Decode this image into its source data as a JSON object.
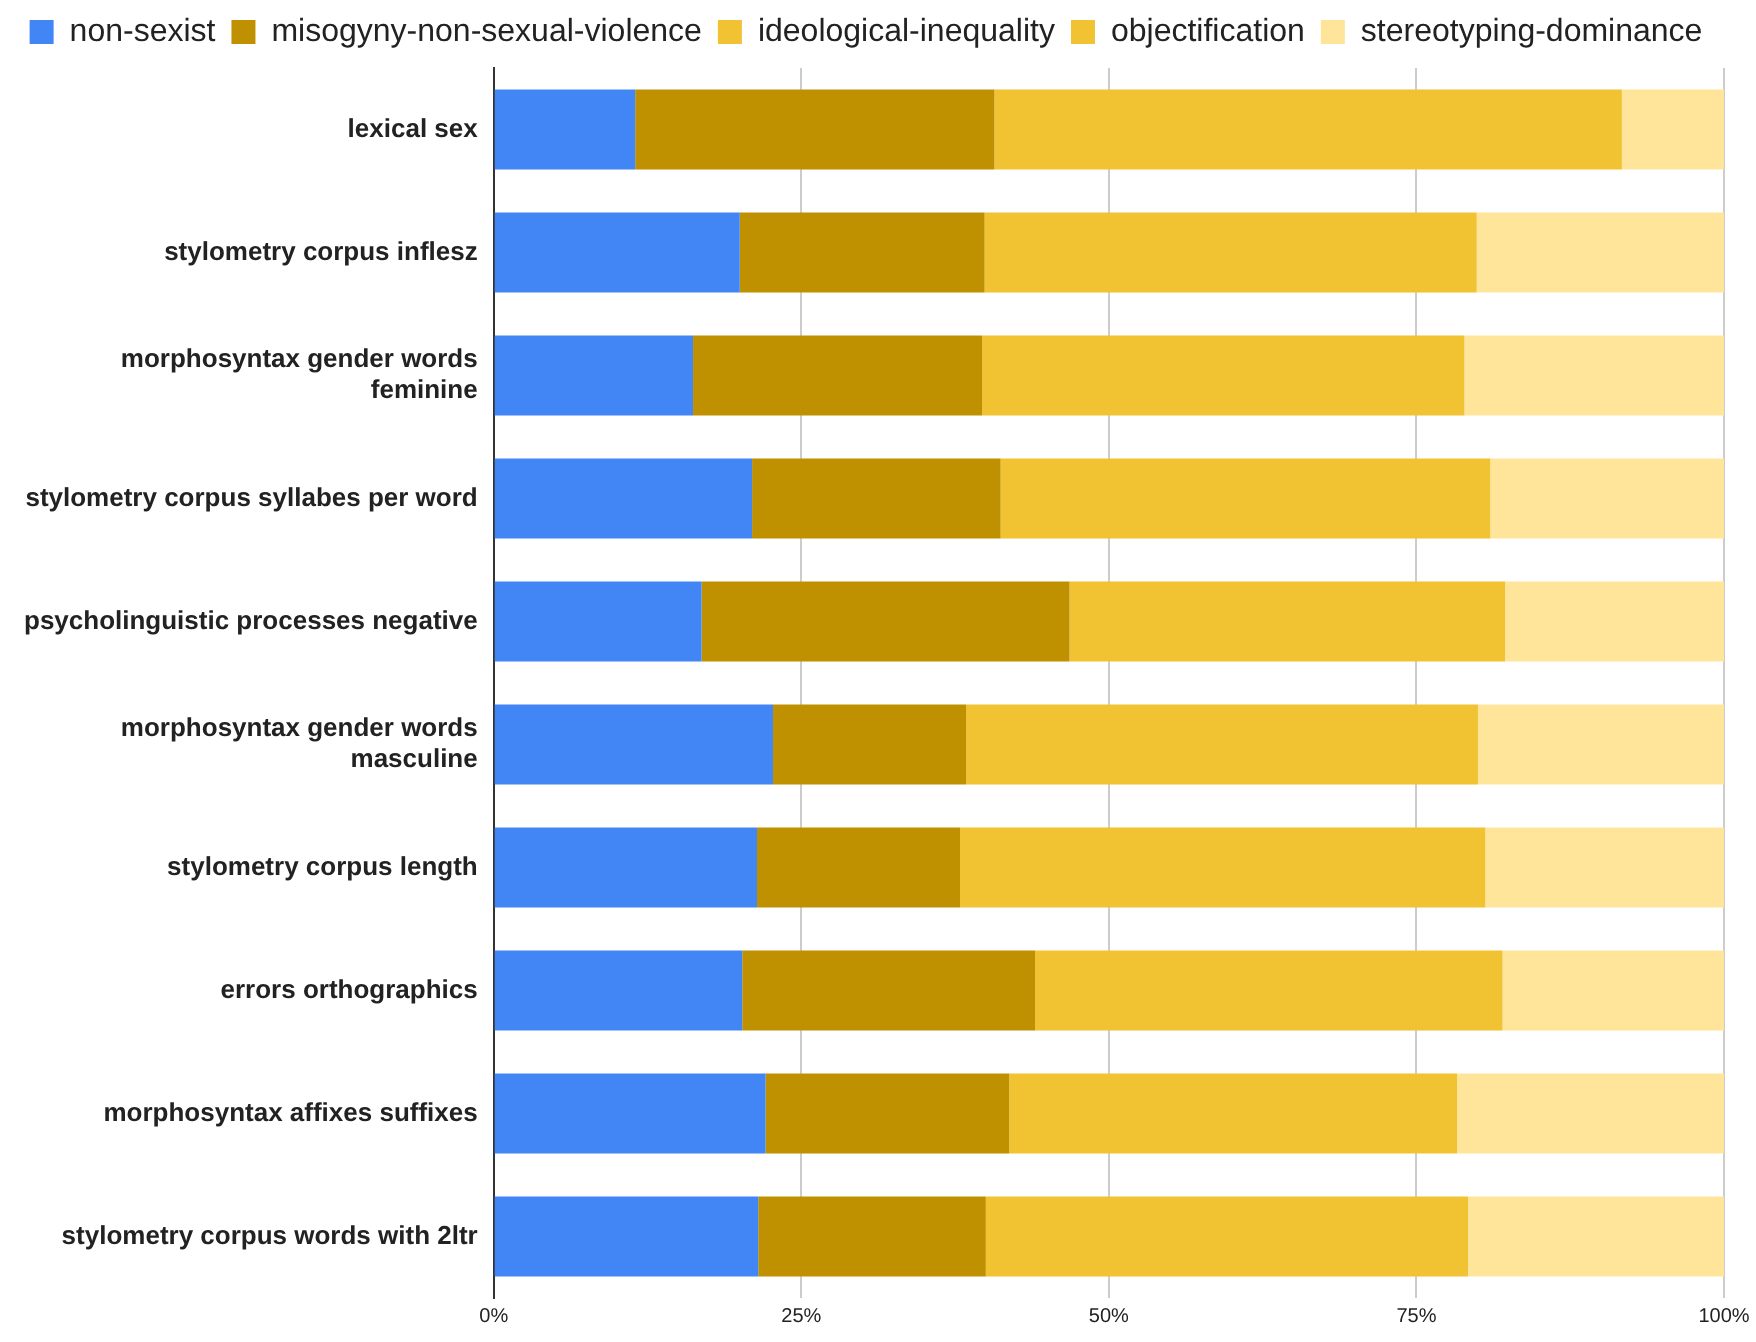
{
  "chart_data": {
    "type": "bar",
    "orientation": "horizontal",
    "stacked": true,
    "categories": [
      "lexical sex",
      "stylometry corpus inflesz",
      "morphosyntax gender words feminine",
      "stylometry corpus syllabes per word",
      "psycholinguistic processes negative",
      "morphosyntax gender words masculine",
      "stylometry corpus length",
      "errors orthographics",
      "morphosyntax affixes suffixes",
      "stylometry corpus words with 2ltr"
    ],
    "series": [
      {
        "name": "non-sexist",
        "color": "#4285f4",
        "values": [
          11.5,
          20.0,
          16.2,
          21.0,
          16.9,
          22.7,
          21.4,
          20.2,
          22.1,
          21.5
        ]
      },
      {
        "name": "misogyny-non-sexual-violence",
        "color": "#bf9000",
        "values": [
          29.2,
          19.9,
          23.5,
          20.2,
          29.9,
          15.7,
          16.5,
          23.8,
          19.8,
          18.5
        ]
      },
      {
        "name": "ideological-inequality",
        "color": "#f1c232",
        "values": [
          51.0,
          40.0,
          39.2,
          39.8,
          35.4,
          41.6,
          42.7,
          38.0,
          36.4,
          39.2
        ]
      },
      {
        "name": "objectification",
        "color": "#f1c232",
        "values": [
          null,
          null,
          null,
          null,
          null,
          null,
          null,
          null,
          null,
          null
        ]
      },
      {
        "name": "stereotyping-dominance",
        "color": "#ffe599",
        "values": [
          8.3,
          20.1,
          21.1,
          19.0,
          17.8,
          20.0,
          19.4,
          18.0,
          21.7,
          20.8
        ]
      }
    ],
    "xlim": [
      0,
      100
    ],
    "xticks": [
      {
        "value": 0,
        "label": "0%"
      },
      {
        "value": 25,
        "label": "25%"
      },
      {
        "value": 50,
        "label": "50%"
      },
      {
        "value": 75,
        "label": "75%"
      },
      {
        "value": 100,
        "label": "100%"
      }
    ],
    "grid": "x",
    "legend": "top"
  }
}
